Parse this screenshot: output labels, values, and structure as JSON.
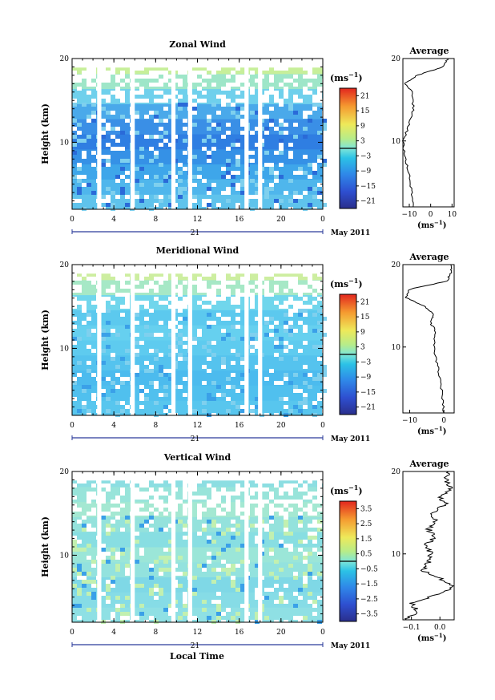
{
  "figure": {
    "xlabel": "Local Time",
    "date_label": "May 2011",
    "day_label": "21",
    "unit_label": "(ms",
    "unit_exp": "−1",
    "ylabel": "Height (km)"
  },
  "panels": [
    {
      "title": "Zonal Wind",
      "profile_title": "Average",
      "x_ticks": [
        "0",
        "4",
        "8",
        "12",
        "16",
        "20",
        "0"
      ],
      "y_ticks": [
        "20",
        "10"
      ],
      "colorbar_ticks": [
        "21",
        "15",
        "9",
        "3",
        "−3",
        "−9",
        "−15",
        "−21"
      ],
      "profile_x_ticks": [
        "−10",
        "0",
        "10"
      ],
      "profile_y_ticks": [
        "20",
        "10"
      ]
    },
    {
      "title": "Meridional Wind",
      "profile_title": "Average",
      "x_ticks": [
        "0",
        "4",
        "8",
        "12",
        "16",
        "20",
        "0"
      ],
      "y_ticks": [
        "20",
        "10"
      ],
      "colorbar_ticks": [
        "21",
        "15",
        "9",
        "3",
        "−3",
        "−9",
        "−15",
        "−21"
      ],
      "profile_x_ticks": [
        "−10",
        "0"
      ],
      "profile_y_ticks": [
        "20",
        "10"
      ]
    },
    {
      "title": "Vertical Wind",
      "profile_title": "Average",
      "x_ticks": [
        "0",
        "4",
        "8",
        "12",
        "16",
        "20",
        "0"
      ],
      "y_ticks": [
        "20",
        "10"
      ],
      "colorbar_ticks": [
        "3.5",
        "2.5",
        "1.5",
        "0.5",
        "−0.5",
        "−1.5",
        "−2.5",
        "−3.5"
      ],
      "profile_x_ticks": [
        "−0.1",
        "0.0"
      ],
      "profile_y_ticks": [
        "20",
        "10"
      ]
    }
  ],
  "chart_data": [
    {
      "type": "heatmap",
      "title": "Zonal Wind",
      "xlabel": "",
      "ylabel": "Height (km)",
      "x_range_hours": [
        0,
        24
      ],
      "ylim": [
        2,
        20
      ],
      "colorbar_range": [
        -24,
        24
      ],
      "gaps_hours": [
        [
          2.4,
          2.8
        ],
        [
          5.6,
          6.0
        ],
        [
          9.5,
          9.9
        ],
        [
          11.1,
          11.5
        ],
        [
          16.5,
          16.9
        ],
        [
          17.8,
          18.2
        ]
      ],
      "mean_profile_km": [
        [
          2,
          -8
        ],
        [
          4,
          -9
        ],
        [
          6,
          -10
        ],
        [
          8,
          -12
        ],
        [
          10,
          -13
        ],
        [
          12,
          -10
        ],
        [
          14,
          -8
        ],
        [
          16,
          -9
        ],
        [
          17,
          -12
        ],
        [
          18,
          -6
        ],
        [
          19,
          6
        ],
        [
          20,
          8
        ]
      ],
      "profile_xlim": [
        -13,
        11
      ]
    },
    {
      "type": "heatmap",
      "title": "Meridional Wind",
      "xlabel": "",
      "ylabel": "Height (km)",
      "x_range_hours": [
        0,
        24
      ],
      "ylim": [
        2,
        20
      ],
      "colorbar_range": [
        -24,
        24
      ],
      "gaps_hours": [
        [
          2.4,
          2.8
        ],
        [
          5.6,
          6.0
        ],
        [
          9.5,
          9.9
        ],
        [
          11.1,
          11.5
        ],
        [
          16.5,
          16.9
        ],
        [
          17.8,
          18.2
        ]
      ],
      "mean_profile_km": [
        [
          2,
          0
        ],
        [
          4,
          -0.5
        ],
        [
          6,
          -1
        ],
        [
          8,
          -2
        ],
        [
          10,
          -3
        ],
        [
          12,
          -2.5
        ],
        [
          13,
          -4
        ],
        [
          14,
          -3
        ],
        [
          15,
          -6
        ],
        [
          16,
          -11
        ],
        [
          17,
          -10
        ],
        [
          18,
          1
        ],
        [
          19,
          2
        ],
        [
          20,
          2
        ]
      ],
      "profile_xlim": [
        -12,
        3
      ]
    },
    {
      "type": "heatmap",
      "title": "Vertical Wind",
      "xlabel": "Local Time",
      "ylabel": "Height (km)",
      "x_range_hours": [
        0,
        24
      ],
      "ylim": [
        2,
        20
      ],
      "colorbar_range": [
        -4,
        4
      ],
      "gaps_hours": [
        [
          2.4,
          2.8
        ],
        [
          5.6,
          6.0
        ],
        [
          9.5,
          9.9
        ],
        [
          11.1,
          11.5
        ],
        [
          16.5,
          16.9
        ],
        [
          17.8,
          18.2
        ]
      ],
      "mean_profile_km": [
        [
          2,
          -0.12
        ],
        [
          3,
          -0.08
        ],
        [
          4,
          -0.1
        ],
        [
          5,
          -0.02
        ],
        [
          6,
          0.05
        ],
        [
          7,
          0.0
        ],
        [
          8,
          -0.06
        ],
        [
          9,
          -0.04
        ],
        [
          10,
          -0.03
        ],
        [
          11,
          -0.05
        ],
        [
          12,
          -0.02
        ],
        [
          13,
          -0.04
        ],
        [
          14,
          -0.01
        ],
        [
          15,
          -0.03
        ],
        [
          16,
          0.02
        ],
        [
          17,
          0.0
        ],
        [
          18,
          0.04
        ],
        [
          19,
          0.02
        ],
        [
          20,
          0.03
        ]
      ],
      "profile_xlim": [
        -0.13,
        0.05
      ]
    }
  ]
}
